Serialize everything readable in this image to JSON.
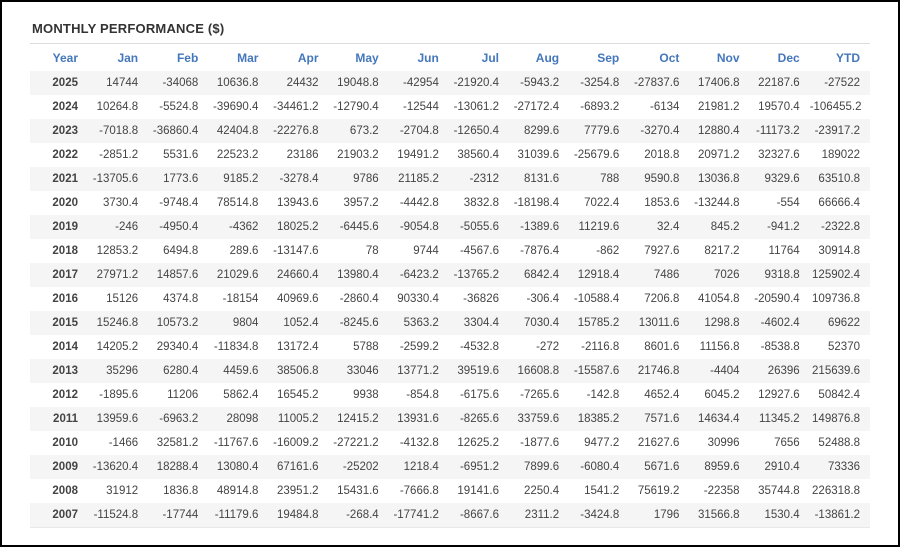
{
  "title": "MONTHLY PERFORMANCE ($)",
  "columns": [
    "Year",
    "Jan",
    "Feb",
    "Mar",
    "Apr",
    "May",
    "Jun",
    "Jul",
    "Aug",
    "Sep",
    "Oct",
    "Nov",
    "Dec",
    "YTD"
  ],
  "rows": [
    {
      "year": "2025",
      "values": [
        "14744",
        "-34068",
        "10636.8",
        "24432",
        "19048.8",
        "-42954",
        "-21920.4",
        "-5943.2",
        "-3254.8",
        "-27837.6",
        "17406.8",
        "22187.6",
        "-27522"
      ]
    },
    {
      "year": "2024",
      "values": [
        "10264.8",
        "-5524.8",
        "-39690.4",
        "-34461.2",
        "-12790.4",
        "-12544",
        "-13061.2",
        "-27172.4",
        "-6893.2",
        "-6134",
        "21981.2",
        "19570.4",
        "-106455.2"
      ]
    },
    {
      "year": "2023",
      "values": [
        "-7018.8",
        "-36860.4",
        "42404.8",
        "-22276.8",
        "673.2",
        "-2704.8",
        "-12650.4",
        "8299.6",
        "7779.6",
        "-3270.4",
        "12880.4",
        "-11173.2",
        "-23917.2"
      ]
    },
    {
      "year": "2022",
      "values": [
        "-2851.2",
        "5531.6",
        "22523.2",
        "23186",
        "21903.2",
        "19491.2",
        "38560.4",
        "31039.6",
        "-25679.6",
        "2018.8",
        "20971.2",
        "32327.6",
        "189022"
      ]
    },
    {
      "year": "2021",
      "values": [
        "-13705.6",
        "1773.6",
        "9185.2",
        "-3278.4",
        "9786",
        "21185.2",
        "-2312",
        "8131.6",
        "788",
        "9590.8",
        "13036.8",
        "9329.6",
        "63510.8"
      ]
    },
    {
      "year": "2020",
      "values": [
        "3730.4",
        "-9748.4",
        "78514.8",
        "13943.6",
        "3957.2",
        "-4442.8",
        "3832.8",
        "-18198.4",
        "7022.4",
        "1853.6",
        "-13244.8",
        "-554",
        "66666.4"
      ]
    },
    {
      "year": "2019",
      "values": [
        "-246",
        "-4950.4",
        "-4362",
        "18025.2",
        "-6445.6",
        "-9054.8",
        "-5055.6",
        "-1389.6",
        "11219.6",
        "32.4",
        "845.2",
        "-941.2",
        "-2322.8"
      ]
    },
    {
      "year": "2018",
      "values": [
        "12853.2",
        "6494.8",
        "289.6",
        "-13147.6",
        "78",
        "9744",
        "-4567.6",
        "-7876.4",
        "-862",
        "7927.6",
        "8217.2",
        "11764",
        "30914.8"
      ]
    },
    {
      "year": "2017",
      "values": [
        "27971.2",
        "14857.6",
        "21029.6",
        "24660.4",
        "13980.4",
        "-6423.2",
        "-13765.2",
        "6842.4",
        "12918.4",
        "7486",
        "7026",
        "9318.8",
        "125902.4"
      ]
    },
    {
      "year": "2016",
      "values": [
        "15126",
        "4374.8",
        "-18154",
        "40969.6",
        "-2860.4",
        "90330.4",
        "-36826",
        "-306.4",
        "-10588.4",
        "7206.8",
        "41054.8",
        "-20590.4",
        "109736.8"
      ]
    },
    {
      "year": "2015",
      "values": [
        "15246.8",
        "10573.2",
        "9804",
        "1052.4",
        "-8245.6",
        "5363.2",
        "3304.4",
        "7030.4",
        "15785.2",
        "13011.6",
        "1298.8",
        "-4602.4",
        "69622"
      ]
    },
    {
      "year": "2014",
      "values": [
        "14205.2",
        "29340.4",
        "-11834.8",
        "13172.4",
        "5788",
        "-2599.2",
        "-4532.8",
        "-272",
        "-2116.8",
        "8601.6",
        "11156.8",
        "-8538.8",
        "52370"
      ]
    },
    {
      "year": "2013",
      "values": [
        "35296",
        "6280.4",
        "4459.6",
        "38506.8",
        "33046",
        "13771.2",
        "39519.6",
        "16608.8",
        "-15587.6",
        "21746.8",
        "-4404",
        "26396",
        "215639.6"
      ]
    },
    {
      "year": "2012",
      "values": [
        "-1895.6",
        "11206",
        "5862.4",
        "16545.2",
        "9938",
        "-854.8",
        "-6175.6",
        "-7265.6",
        "-142.8",
        "4652.4",
        "6045.2",
        "12927.6",
        "50842.4"
      ]
    },
    {
      "year": "2011",
      "values": [
        "13959.6",
        "-6963.2",
        "28098",
        "11005.2",
        "12415.2",
        "13931.6",
        "-8265.6",
        "33759.6",
        "18385.2",
        "7571.6",
        "14634.4",
        "11345.2",
        "149876.8"
      ]
    },
    {
      "year": "2010",
      "values": [
        "-1466",
        "32581.2",
        "-11767.6",
        "-16009.2",
        "-27221.2",
        "-4132.8",
        "12625.2",
        "-1877.6",
        "9477.2",
        "21627.6",
        "30996",
        "7656",
        "52488.8"
      ]
    },
    {
      "year": "2009",
      "values": [
        "-13620.4",
        "18288.4",
        "13080.4",
        "67161.6",
        "-25202",
        "1218.4",
        "-6951.2",
        "7899.6",
        "-6080.4",
        "5671.6",
        "8959.6",
        "2910.4",
        "73336"
      ]
    },
    {
      "year": "2008",
      "values": [
        "31912",
        "1836.8",
        "48914.8",
        "23951.2",
        "15431.6",
        "-7666.8",
        "19141.6",
        "2250.4",
        "1541.2",
        "75619.2",
        "-22358",
        "35744.8",
        "226318.8"
      ]
    },
    {
      "year": "2007",
      "values": [
        "-11524.8",
        "-17744",
        "-11179.6",
        "19484.8",
        "-268.4",
        "-17741.2",
        "-8667.6",
        "2311.2",
        "-3424.8",
        "1796",
        "31566.8",
        "1530.4",
        "-13861.2"
      ]
    }
  ],
  "colors": {
    "header_blue": "#4477bb",
    "negative_red": "#ef5e57",
    "positive_text": "#444444",
    "title_text": "#333333",
    "stripe_gray": "#f5f5f5"
  }
}
